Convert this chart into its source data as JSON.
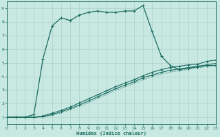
{
  "xlabel": "Humidex (Indice chaleur)",
  "bg_color": "#c8e8e2",
  "grid_color": "#aed0ca",
  "line_color": "#1a6b60",
  "xlim": [
    0,
    23
  ],
  "ylim": [
    0.5,
    9.5
  ],
  "xticks": [
    0,
    1,
    2,
    3,
    4,
    5,
    6,
    7,
    8,
    9,
    10,
    11,
    12,
    13,
    14,
    15,
    16,
    17,
    18,
    19,
    20,
    21,
    22,
    23
  ],
  "yticks": [
    1,
    2,
    3,
    4,
    5,
    6,
    7,
    8,
    9
  ],
  "curve_x": [
    0,
    1,
    2,
    3,
    4,
    5,
    6,
    7,
    8,
    9,
    10,
    11,
    12,
    13,
    14,
    15,
    16,
    17,
    18,
    19,
    20,
    21,
    22,
    23
  ],
  "curve_y": [
    1.0,
    1.0,
    1.0,
    1.2,
    5.3,
    7.7,
    8.3,
    8.1,
    8.5,
    8.7,
    8.8,
    8.7,
    8.7,
    8.8,
    8.8,
    9.2,
    7.3,
    5.5,
    4.8,
    4.5,
    4.6,
    4.7,
    4.8,
    4.8
  ],
  "line1_x": [
    0,
    1,
    2,
    3,
    4,
    5,
    6,
    7,
    8,
    9,
    10,
    11,
    12,
    13,
    14,
    15,
    16,
    17,
    18,
    19,
    20,
    21,
    22,
    23
  ],
  "line1_y": [
    1.0,
    1.0,
    1.0,
    1.0,
    1.1,
    1.3,
    1.5,
    1.75,
    2.05,
    2.35,
    2.65,
    2.95,
    3.25,
    3.5,
    3.75,
    4.05,
    4.3,
    4.5,
    4.65,
    4.75,
    4.85,
    4.9,
    5.1,
    5.2
  ],
  "line2_x": [
    0,
    1,
    2,
    3,
    4,
    5,
    6,
    7,
    8,
    9,
    10,
    11,
    12,
    13,
    14,
    15,
    16,
    17,
    18,
    19,
    20,
    21,
    22,
    23
  ],
  "line2_y": [
    1.0,
    1.0,
    1.0,
    1.0,
    1.05,
    1.2,
    1.4,
    1.65,
    1.9,
    2.2,
    2.5,
    2.8,
    3.1,
    3.35,
    3.6,
    3.9,
    4.1,
    4.3,
    4.45,
    4.55,
    4.65,
    4.75,
    4.85,
    4.95
  ],
  "line3_x": [
    0,
    1,
    2,
    3,
    4,
    5,
    6,
    7,
    8,
    9,
    10,
    11,
    12,
    13,
    14,
    15,
    16,
    17,
    18,
    19,
    20,
    21,
    22,
    23
  ],
  "line3_y": [
    1.0,
    1.0,
    1.0,
    1.0,
    1.02,
    1.15,
    1.32,
    1.55,
    1.8,
    2.08,
    2.38,
    2.68,
    2.98,
    3.22,
    3.48,
    3.75,
    3.98,
    4.18,
    4.32,
    4.42,
    4.52,
    4.62,
    4.72,
    4.82
  ]
}
